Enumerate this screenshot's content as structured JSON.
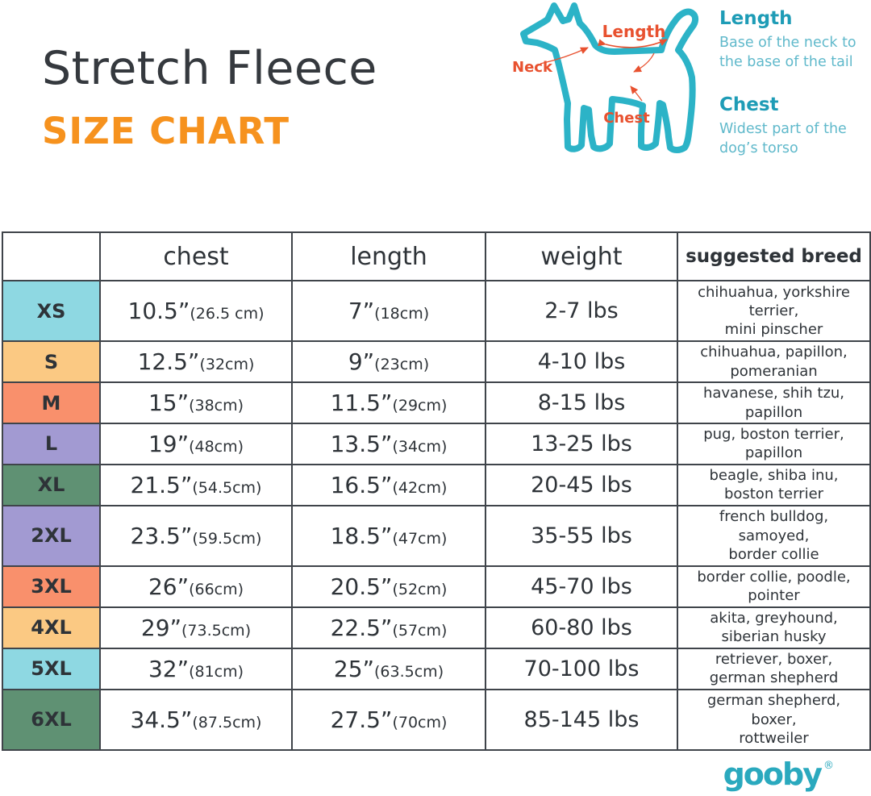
{
  "header": {
    "title": "Stretch Fleece",
    "subtitle": "SIZE CHART"
  },
  "diagram": {
    "annotations": {
      "neck": "Neck",
      "length": "Length",
      "chest": "Chest"
    },
    "legend": [
      {
        "term": "Length",
        "definition": "Base of the neck to the base of the tail"
      },
      {
        "term": "Chest",
        "definition": "Widest part of the dog’s torso"
      }
    ],
    "colors": {
      "outline": "#2cb3c7",
      "annotation": "#e8512f"
    }
  },
  "table": {
    "columns": [
      "",
      "chest",
      "length",
      "weight",
      "suggested breed"
    ],
    "rows": [
      {
        "size": "XS",
        "color": "#8ed8e2",
        "chest_in": "10.5”",
        "chest_cm": "(26.5 cm)",
        "length_in": "7”",
        "length_cm": "(18cm)",
        "weight": "2-7 lbs",
        "breeds": "chihuahua, yorkshire terrier,\nmini pinscher"
      },
      {
        "size": "S",
        "color": "#fbc983",
        "chest_in": "12.5”",
        "chest_cm": "(32cm)",
        "length_in": "9”",
        "length_cm": "(23cm)",
        "weight": "4-10 lbs",
        "breeds": "chihuahua, papillon,\npomeranian"
      },
      {
        "size": "M",
        "color": "#f9906c",
        "chest_in": "15”",
        "chest_cm": "(38cm)",
        "length_in": "11.5”",
        "length_cm": "(29cm)",
        "weight": "8-15 lbs",
        "breeds": "havanese, shih tzu,\npapillon"
      },
      {
        "size": "L",
        "color": "#a29ad2",
        "chest_in": "19”",
        "chest_cm": "(48cm)",
        "length_in": "13.5”",
        "length_cm": "(34cm)",
        "weight": "13-25 lbs",
        "breeds": "pug, boston terrier,\npapillon"
      },
      {
        "size": "XL",
        "color": "#5f9173",
        "chest_in": "21.5”",
        "chest_cm": "(54.5cm)",
        "length_in": "16.5”",
        "length_cm": "(42cm)",
        "weight": "20-45 lbs",
        "breeds": "beagle, shiba inu,\nboston terrier"
      },
      {
        "size": "2XL",
        "color": "#a29ad2",
        "chest_in": "23.5”",
        "chest_cm": "(59.5cm)",
        "length_in": "18.5”",
        "length_cm": "(47cm)",
        "weight": "35-55 lbs",
        "breeds": "french bulldog, samoyed,\nborder collie"
      },
      {
        "size": "3XL",
        "color": "#f9906c",
        "chest_in": "26”",
        "chest_cm": "(66cm)",
        "length_in": "20.5”",
        "length_cm": "(52cm)",
        "weight": "45-70 lbs",
        "breeds": "border collie, poodle,\npointer"
      },
      {
        "size": "4XL",
        "color": "#fbc983",
        "chest_in": "29”",
        "chest_cm": "(73.5cm)",
        "length_in": "22.5”",
        "length_cm": "(57cm)",
        "weight": "60-80 lbs",
        "breeds": "akita, greyhound,\nsiberian husky"
      },
      {
        "size": "5XL",
        "color": "#8ed8e2",
        "chest_in": "32”",
        "chest_cm": "(81cm)",
        "length_in": "25”",
        "length_cm": "(63.5cm)",
        "weight": "70-100 lbs",
        "breeds": "retriever, boxer,\ngerman shepherd"
      },
      {
        "size": "6XL",
        "color": "#5f9173",
        "chest_in": "34.5”",
        "chest_cm": "(87.5cm)",
        "length_in": "27.5”",
        "length_cm": "(70cm)",
        "weight": "85-145 lbs",
        "breeds": "german shepherd, boxer,\nrottweiler"
      }
    ]
  },
  "footer": {
    "brand": "gooby",
    "registered": "®"
  }
}
